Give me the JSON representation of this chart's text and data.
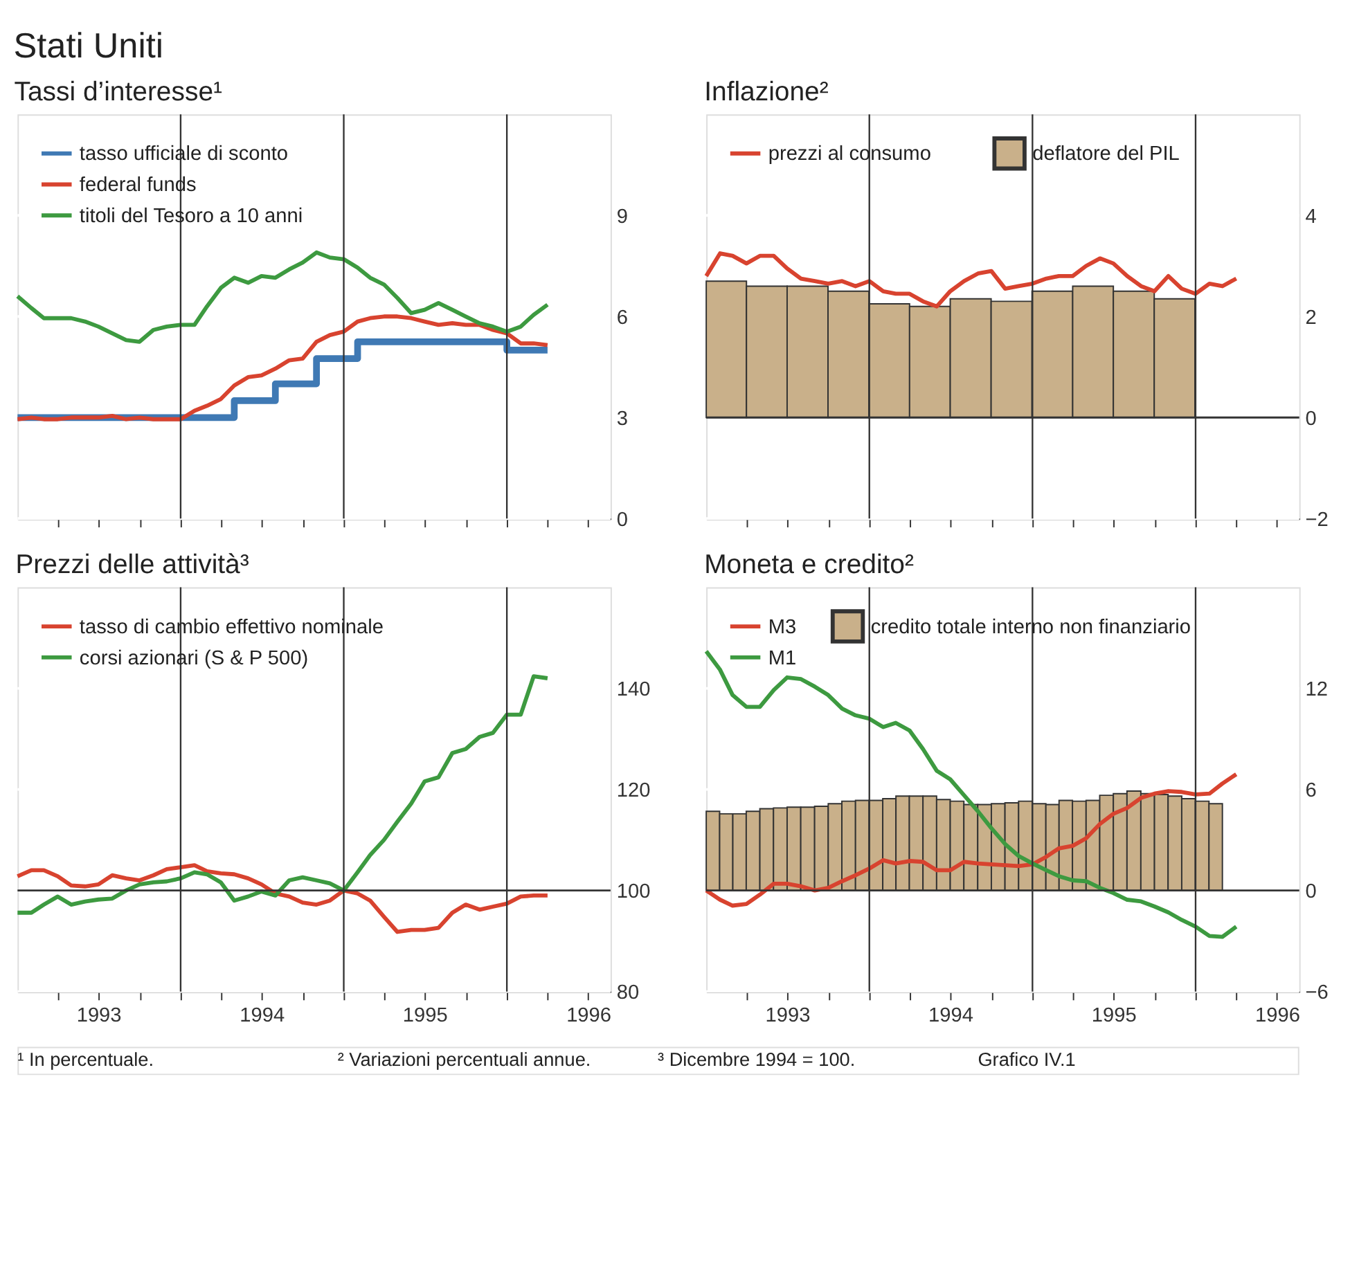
{
  "chart_data": [
    {
      "type": "line",
      "title": "Tassi d’interesse¹",
      "legend": "top left",
      "grid": "y",
      "tick_labels": "y",
      "x": [
        "1993-01",
        "1993-02",
        "1993-03",
        "1993-04",
        "1993-05",
        "1993-06",
        "1993-07",
        "1993-08",
        "1993-09",
        "1993-10",
        "1993-11",
        "1993-12",
        "1994-01",
        "1994-02",
        "1994-03",
        "1994-04",
        "1994-05",
        "1994-06",
        "1994-07",
        "1994-08",
        "1994-09",
        "1994-10",
        "1994-11",
        "1994-12",
        "1995-01",
        "1995-02",
        "1995-03",
        "1995-04",
        "1995-05",
        "1995-06",
        "1995-07",
        "1995-08",
        "1995-09",
        "1995-10",
        "1995-11",
        "1995-12",
        "1996-01",
        "1996-02",
        "1996-03",
        "1996-04"
      ],
      "xlim": [
        "1993-01-01",
        "1996-08-20"
      ],
      "xticks": [
        {
          "value": "1993-04",
          "label": null
        },
        {
          "value": "1993-07",
          "label": null
        },
        {
          "value": "1993-10",
          "label": null
        },
        {
          "value": "1994-01",
          "label": null
        },
        {
          "value": "1994-04",
          "label": null
        },
        {
          "value": "1994-07",
          "label": null
        },
        {
          "value": "1994-10",
          "label": null
        },
        {
          "value": "1995-01",
          "label": null
        },
        {
          "value": "1995-04",
          "label": null
        },
        {
          "value": "1995-07",
          "label": null
        },
        {
          "value": "1995-10",
          "label": null
        },
        {
          "value": "1996-01",
          "label": null
        },
        {
          "value": "1996-04",
          "label": null
        },
        {
          "value": "1996-07",
          "label": null
        }
      ],
      "ylim": [
        0,
        12
      ],
      "yticks": [
        0,
        3,
        6,
        9
      ],
      "ref_lines": [
        {
          "axis": "x",
          "value": "1994-01",
          "color": "#333333"
        },
        {
          "axis": "x",
          "value": "1995-01",
          "color": "#333333"
        },
        {
          "axis": "x",
          "value": "1996-01",
          "color": "#333333"
        }
      ],
      "series": [
        {
          "name": "tasso ufficiale di sconto",
          "type": "step",
          "color": "#3f79b4",
          "values": [
            3.0,
            3.0,
            3.0,
            3.0,
            3.0,
            3.0,
            3.0,
            3.0,
            3.0,
            3.0,
            3.0,
            3.0,
            3.0,
            3.0,
            3.0,
            3.0,
            3.5,
            3.5,
            3.5,
            4.0,
            4.0,
            4.0,
            4.75,
            4.75,
            4.75,
            5.25,
            5.25,
            5.25,
            5.25,
            5.25,
            5.25,
            5.25,
            5.25,
            5.25,
            5.25,
            5.25,
            5.0,
            5.0,
            5.0,
            5.0
          ]
        },
        {
          "name": "federal funds",
          "color": "#d8432f",
          "values": [
            2.95,
            3.0,
            2.95,
            2.95,
            3.0,
            3.0,
            3.0,
            3.05,
            2.95,
            3.0,
            2.95,
            2.95,
            2.95,
            3.2,
            3.35,
            3.55,
            3.95,
            4.2,
            4.25,
            4.45,
            4.7,
            4.75,
            5.25,
            5.45,
            5.55,
            5.85,
            5.95,
            6.0,
            6.0,
            5.95,
            5.85,
            5.75,
            5.8,
            5.75,
            5.75,
            5.6,
            5.5,
            5.2,
            5.2,
            5.15
          ]
        },
        {
          "name": "titoli del Tesoro a 10 anni",
          "color": "#3d9a40",
          "values": [
            6.6,
            6.25,
            5.95,
            5.95,
            5.95,
            5.85,
            5.7,
            5.5,
            5.3,
            5.25,
            5.6,
            5.7,
            5.75,
            5.75,
            6.3,
            6.85,
            7.15,
            7.0,
            7.2,
            7.15,
            7.4,
            7.6,
            7.9,
            7.75,
            7.7,
            7.45,
            7.15,
            6.95,
            6.55,
            6.1,
            6.2,
            6.4,
            6.2,
            6.0,
            5.8,
            5.7,
            5.55,
            5.7,
            6.05,
            6.35
          ]
        }
      ]
    },
    {
      "type": "bar",
      "title": "Inflazione²",
      "legend": "top left",
      "grid": "y",
      "tick_labels": "y",
      "x": [
        "1993-01",
        "1993-02",
        "1993-03",
        "1993-04",
        "1993-05",
        "1993-06",
        "1993-07",
        "1993-08",
        "1993-09",
        "1993-10",
        "1993-11",
        "1993-12",
        "1994-01",
        "1994-02",
        "1994-03",
        "1994-04",
        "1994-05",
        "1994-06",
        "1994-07",
        "1994-08",
        "1994-09",
        "1994-10",
        "1994-11",
        "1994-12",
        "1995-01",
        "1995-02",
        "1995-03",
        "1995-04",
        "1995-05",
        "1995-06",
        "1995-07",
        "1995-08",
        "1995-09",
        "1995-10",
        "1995-11",
        "1995-12",
        "1996-01",
        "1996-02",
        "1996-03",
        "1996-04"
      ],
      "xlim": [
        "1993-01-01",
        "1996-08-20"
      ],
      "xticks": [
        {
          "value": "1993-04",
          "label": null
        },
        {
          "value": "1993-07",
          "label": null
        },
        {
          "value": "1993-10",
          "label": null
        },
        {
          "value": "1994-01",
          "label": null
        },
        {
          "value": "1994-04",
          "label": null
        },
        {
          "value": "1994-07",
          "label": null
        },
        {
          "value": "1994-10",
          "label": null
        },
        {
          "value": "1995-01",
          "label": null
        },
        {
          "value": "1995-04",
          "label": null
        },
        {
          "value": "1995-07",
          "label": null
        },
        {
          "value": "1995-10",
          "label": null
        },
        {
          "value": "1996-01",
          "label": null
        },
        {
          "value": "1996-04",
          "label": null
        },
        {
          "value": "1996-07",
          "label": null
        }
      ],
      "ylim": [
        -2,
        6
      ],
      "yticks": [
        -2,
        0,
        2,
        4
      ],
      "ref_lines": [
        {
          "axis": "x",
          "value": "1994-01",
          "color": "#333333"
        },
        {
          "axis": "x",
          "value": "1995-01",
          "color": "#333333"
        },
        {
          "axis": "x",
          "value": "1996-01",
          "color": "#333333"
        },
        {
          "axis": "y",
          "value": 0,
          "color": "#333333"
        }
      ],
      "series": [
        {
          "name": "prezzi al consumo",
          "type": "line",
          "color": "#d8432f",
          "values": [
            2.8,
            3.25,
            3.2,
            3.05,
            3.2,
            3.2,
            2.95,
            2.75,
            2.7,
            2.65,
            2.7,
            2.6,
            2.7,
            2.5,
            2.45,
            2.45,
            2.3,
            2.2,
            2.5,
            2.7,
            2.85,
            2.9,
            2.55,
            2.6,
            2.65,
            2.75,
            2.8,
            2.8,
            3.0,
            3.15,
            3.05,
            2.8,
            2.6,
            2.5,
            2.8,
            2.55,
            2.45,
            2.65,
            2.6,
            2.75
          ]
        },
        {
          "name": "deflatore del PIL",
          "type": "bar",
          "color": "#c9b08a",
          "x": [
            "1993-02-15",
            "1993-05-16",
            "1993-08-16",
            "1993-11-15",
            "1994-02-15",
            "1994-05-16",
            "1994-08-16",
            "1994-11-15",
            "1995-02-15",
            "1995-05-16",
            "1995-08-16",
            "1995-11-15"
          ],
          "values": [
            2.7,
            2.6,
            2.6,
            2.5,
            2.25,
            2.2,
            2.35,
            2.3,
            2.5,
            2.6,
            2.5,
            2.35
          ]
        }
      ]
    },
    {
      "type": "line",
      "title": "Prezzi delle attività³",
      "legend": "top left",
      "grid": "y",
      "x": [
        "1993-01",
        "1993-02",
        "1993-03",
        "1993-04",
        "1993-05",
        "1993-06",
        "1993-07",
        "1993-08",
        "1993-09",
        "1993-10",
        "1993-11",
        "1993-12",
        "1994-01",
        "1994-02",
        "1994-03",
        "1994-04",
        "1994-05",
        "1994-06",
        "1994-07",
        "1994-08",
        "1994-09",
        "1994-10",
        "1994-11",
        "1994-12",
        "1995-01",
        "1995-02",
        "1995-03",
        "1995-04",
        "1995-05",
        "1995-06",
        "1995-07",
        "1995-08",
        "1995-09",
        "1995-10",
        "1995-11",
        "1995-12",
        "1996-01",
        "1996-02",
        "1996-03",
        "1996-04"
      ],
      "xlim": [
        "1993-01-01",
        "1996-08-20"
      ],
      "xticks": [
        {
          "value": "1993-04",
          "label": null
        },
        {
          "value": "1993-07",
          "label": "1993"
        },
        {
          "value": "1993-10",
          "label": null
        },
        {
          "value": "1994-01",
          "label": null
        },
        {
          "value": "1994-04",
          "label": null
        },
        {
          "value": "1994-07",
          "label": "1994"
        },
        {
          "value": "1994-10",
          "label": null
        },
        {
          "value": "1995-01",
          "label": null
        },
        {
          "value": "1995-04",
          "label": null
        },
        {
          "value": "1995-07",
          "label": "1995"
        },
        {
          "value": "1995-10",
          "label": null
        },
        {
          "value": "1996-01",
          "label": null
        },
        {
          "value": "1996-04",
          "label": null
        },
        {
          "value": "1996-07",
          "label": "1996"
        }
      ],
      "ylim": [
        80,
        160
      ],
      "yticks": [
        80,
        100,
        120,
        140
      ],
      "ref_lines": [
        {
          "axis": "x",
          "value": "1994-01",
          "color": "#333333"
        },
        {
          "axis": "x",
          "value": "1995-01",
          "color": "#333333"
        },
        {
          "axis": "x",
          "value": "1996-01",
          "color": "#333333"
        },
        {
          "axis": "y",
          "value": 100,
          "color": "#333333"
        }
      ],
      "series": [
        {
          "name": "tasso di cambio effettivo nominale",
          "color": "#d8432f",
          "values": [
            102.8,
            104,
            104,
            102.8,
            101,
            100.8,
            101.2,
            103,
            102.4,
            102,
            103,
            104.2,
            104.6,
            105,
            103.8,
            103.4,
            103.2,
            102.4,
            101.2,
            99.4,
            98.8,
            97.6,
            97.2,
            98,
            100,
            99.4,
            98,
            94.8,
            91.8,
            92.2,
            92.2,
            92.6,
            95.6,
            97.2,
            96.2,
            96.8,
            97.4,
            98.8,
            99,
            99
          ]
        },
        {
          "name": "corsi azionari (S & P 500)",
          "color": "#3d9a40",
          "values": [
            95.6,
            95.6,
            97.2,
            98.8,
            97.2,
            97.8,
            98.2,
            98.4,
            100,
            101.2,
            101.6,
            101.8,
            102.4,
            103.6,
            103.2,
            101.6,
            98,
            98.8,
            99.8,
            99,
            102,
            102.6,
            102,
            101.4,
            100,
            103.6,
            107,
            110,
            113.6,
            117.2,
            121.6,
            122.4,
            127.2,
            128,
            130.4,
            131.2,
            134.8,
            134.8,
            142.4,
            142
          ]
        }
      ]
    },
    {
      "type": "bar",
      "title": "Moneta e credito²",
      "legend": "top left",
      "grid": "y",
      "x": [
        "1993-01",
        "1993-02",
        "1993-03",
        "1993-04",
        "1993-05",
        "1993-06",
        "1993-07",
        "1993-08",
        "1993-09",
        "1993-10",
        "1993-11",
        "1993-12",
        "1994-01",
        "1994-02",
        "1994-03",
        "1994-04",
        "1994-05",
        "1994-06",
        "1994-07",
        "1994-08",
        "1994-09",
        "1994-10",
        "1994-11",
        "1994-12",
        "1995-01",
        "1995-02",
        "1995-03",
        "1995-04",
        "1995-05",
        "1995-06",
        "1995-07",
        "1995-08",
        "1995-09",
        "1995-10",
        "1995-11",
        "1995-12",
        "1996-01",
        "1996-02",
        "1996-03",
        "1996-04"
      ],
      "xlim": [
        "1993-01-01",
        "1996-08-20"
      ],
      "xticks": [
        {
          "value": "1993-04",
          "label": null
        },
        {
          "value": "1993-07",
          "label": "1993"
        },
        {
          "value": "1993-10",
          "label": null
        },
        {
          "value": "1994-01",
          "label": null
        },
        {
          "value": "1994-04",
          "label": null
        },
        {
          "value": "1994-07",
          "label": "1994"
        },
        {
          "value": "1994-10",
          "label": null
        },
        {
          "value": "1995-01",
          "label": null
        },
        {
          "value": "1995-04",
          "label": null
        },
        {
          "value": "1995-07",
          "label": "1995"
        },
        {
          "value": "1995-10",
          "label": null
        },
        {
          "value": "1996-01",
          "label": null
        },
        {
          "value": "1996-04",
          "label": null
        },
        {
          "value": "1996-07",
          "label": "1996"
        }
      ],
      "ylim": [
        -6,
        18
      ],
      "yticks": [
        -6,
        0,
        6,
        12
      ],
      "ref_lines": [
        {
          "axis": "x",
          "value": "1994-01",
          "color": "#333333"
        },
        {
          "axis": "x",
          "value": "1995-01",
          "color": "#333333"
        },
        {
          "axis": "x",
          "value": "1996-01",
          "color": "#333333"
        },
        {
          "axis": "y",
          "value": 0,
          "color": "#333333"
        }
      ],
      "series": [
        {
          "name": "M3",
          "type": "line",
          "color": "#d8432f",
          "values": [
            0,
            -0.55,
            -0.9,
            -0.8,
            -0.25,
            0.4,
            0.4,
            0.25,
            0,
            0.15,
            0.55,
            0.9,
            1.3,
            1.8,
            1.6,
            1.75,
            1.7,
            1.2,
            1.2,
            1.7,
            1.6,
            1.55,
            1.5,
            1.45,
            1.55,
            2.0,
            2.5,
            2.65,
            3.1,
            3.95,
            4.55,
            4.9,
            5.5,
            5.75,
            5.9,
            5.85,
            5.7,
            5.75,
            6.35,
            6.9
          ]
        },
        {
          "name": "M1",
          "type": "line",
          "color": "#3d9a40",
          "values": [
            14.2,
            13.1,
            11.6,
            10.9,
            10.9,
            11.9,
            12.65,
            12.55,
            12.1,
            11.6,
            10.8,
            10.4,
            10.2,
            9.7,
            9.95,
            9.5,
            8.4,
            7.1,
            6.6,
            5.65,
            4.7,
            3.7,
            2.75,
            2.05,
            1.6,
            1.2,
            0.85,
            0.6,
            0.55,
            0.15,
            -0.15,
            -0.55,
            -0.65,
            -0.95,
            -1.3,
            -1.75,
            -2.15,
            -2.7,
            -2.75,
            -2.15
          ]
        },
        {
          "name": "credito totale interno non finanziario",
          "type": "bar",
          "color": "#c9b08a",
          "x": [
            "1993-01-16",
            "1993-02-15",
            "1993-03-16",
            "1993-04-16",
            "1993-05-16",
            "1993-06-16",
            "1993-07-16",
            "1993-08-16",
            "1993-09-16",
            "1993-10-16",
            "1993-11-16",
            "1993-12-16",
            "1994-01-16",
            "1994-02-15",
            "1994-03-16",
            "1994-04-16",
            "1994-05-16",
            "1994-06-16",
            "1994-07-16",
            "1994-08-16",
            "1994-09-16",
            "1994-10-16",
            "1994-11-16",
            "1994-12-16",
            "1995-01-16",
            "1995-02-15",
            "1995-03-16",
            "1995-04-16",
            "1995-05-16",
            "1995-06-16",
            "1995-07-16",
            "1995-08-16",
            "1995-09-16",
            "1995-10-16",
            "1995-11-16",
            "1995-12-16",
            "1996-01-16",
            "1996-02-15"
          ],
          "values": [
            4.7,
            4.55,
            4.55,
            4.7,
            4.85,
            4.9,
            4.95,
            4.95,
            5.0,
            5.15,
            5.3,
            5.35,
            5.35,
            5.45,
            5.6,
            5.6,
            5.6,
            5.4,
            5.3,
            5.1,
            5.1,
            5.15,
            5.2,
            5.3,
            5.15,
            5.1,
            5.35,
            5.3,
            5.35,
            5.65,
            5.75,
            5.9,
            5.75,
            5.7,
            5.6,
            5.45,
            5.3,
            5.15
          ]
        }
      ]
    },
    {
      "type": "other",
      "title": "Stati Uniti",
      "annotations": [
        "¹ In percentuale.",
        "² Variazioni percentuali annue.",
        "³ Dicembre 1994 = 100.",
        "Grafico IV.1"
      ]
    }
  ]
}
